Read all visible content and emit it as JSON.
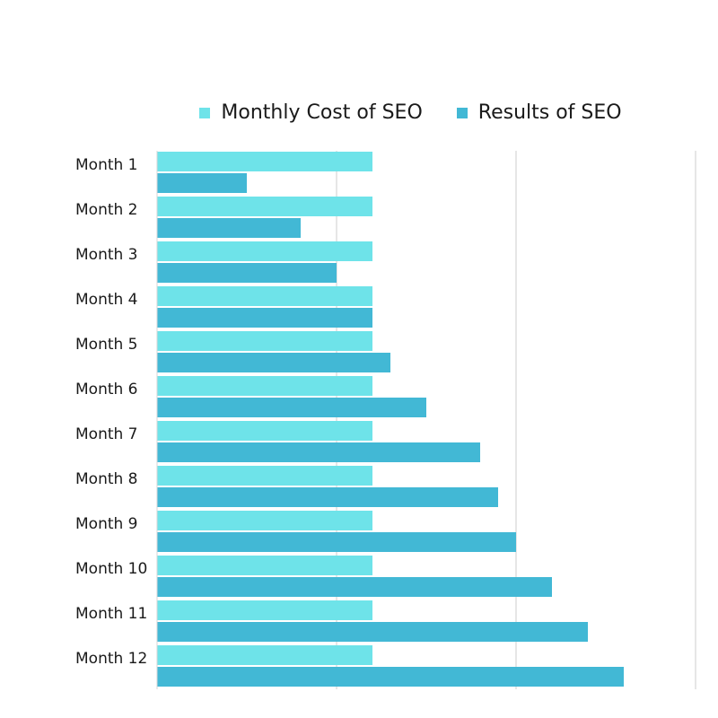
{
  "chart_data": {
    "type": "bar",
    "orientation": "horizontal",
    "categories": [
      "Month 1",
      "Month 2",
      "Month 3",
      "Month 4",
      "Month 5",
      "Month 6",
      "Month 7",
      "Month 8",
      "Month 9",
      "Month 10",
      "Month 11",
      "Month 12"
    ],
    "series": [
      {
        "name": "Monthly Cost of SEO",
        "color": "#6ee3e9",
        "values": [
          12,
          12,
          12,
          12,
          12,
          12,
          12,
          12,
          12,
          12,
          12,
          12
        ]
      },
      {
        "name": "Results of SEO",
        "color": "#42b8d5",
        "values": [
          5,
          8,
          10,
          12,
          13,
          15,
          18,
          19,
          20,
          22,
          24,
          26
        ]
      }
    ],
    "xlim": [
      0,
      30
    ],
    "gridlines": [
      10,
      20,
      30
    ],
    "grid": true,
    "legend_position": "top"
  }
}
